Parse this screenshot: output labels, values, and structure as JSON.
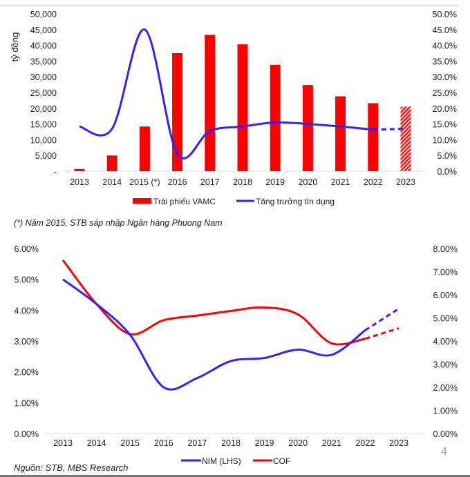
{
  "page_number": "4",
  "footnote": "(*) Năm 2015, STB sáp nhập Ngân hàng Phuong Nam",
  "source": "Nguồn: STB, MBS Research",
  "colors": {
    "red": "#ff0000",
    "blue": "#3a1ef5",
    "axis": "#d9d9d9"
  },
  "chart_data": [
    {
      "type": "bar+line",
      "ylabel": "tỷ đồng",
      "categories": [
        "2013",
        "2014",
        "2015 (*)",
        "2016",
        "2017",
        "2018",
        "2019",
        "2020",
        "2021",
        "2022",
        "2023"
      ],
      "y_ticks": [
        "-",
        "5,000",
        "10,000",
        "15,000",
        "20,000",
        "25,000",
        "30,000",
        "35,000",
        "40,000",
        "45,000",
        "50,000"
      ],
      "y2_ticks": [
        "0.0%",
        "5.0%",
        "10.0%",
        "15.0%",
        "20.0%",
        "25.0%",
        "30.0%",
        "35.0%",
        "40.0%",
        "45.0%",
        "50.0%"
      ],
      "ylim": [
        0,
        50000
      ],
      "y2lim": [
        0,
        50
      ],
      "series": [
        {
          "name": "Trái phiếu VAMC",
          "type": "bar",
          "axis": "left",
          "values": [
            700,
            5000,
            14200,
            37500,
            43300,
            40300,
            33800,
            27400,
            23800,
            21600,
            20500
          ],
          "forecast_from_index": 10
        },
        {
          "name": "Tăng trưởng tín dụng",
          "type": "line",
          "axis": "right",
          "values": [
            14.2,
            13.5,
            45.0,
            5.5,
            12.8,
            14.2,
            15.5,
            15.0,
            14.2,
            13.2,
            13.5
          ],
          "forecast_from_index": 9
        }
      ],
      "legend": "bottom"
    },
    {
      "type": "line",
      "categories": [
        "2013",
        "2014",
        "2015",
        "2016",
        "2017",
        "2018",
        "2019",
        "2020",
        "2021",
        "2022",
        "2023"
      ],
      "y_ticks": [
        "0.00%",
        "1.00%",
        "2.00%",
        "3.00%",
        "4.00%",
        "5.00%",
        "6.00%"
      ],
      "y2_ticks": [
        "0.00%",
        "1.00%",
        "2.00%",
        "3.00%",
        "4.00%",
        "5.00%",
        "6.00%",
        "7.00%",
        "8.00%"
      ],
      "ylim": [
        0,
        6
      ],
      "y2lim": [
        0,
        8
      ],
      "series": [
        {
          "name": "NIM (LHS)",
          "axis": "left",
          "values": [
            5.0,
            4.2,
            3.2,
            1.5,
            1.8,
            2.35,
            2.45,
            2.72,
            2.55,
            3.35,
            4.05
          ],
          "forecast_from_index": 9
        },
        {
          "name": "COF",
          "axis": "right",
          "values": [
            7.5,
            5.6,
            4.3,
            4.9,
            5.1,
            5.3,
            5.45,
            5.15,
            3.9,
            4.1,
            4.55
          ],
          "forecast_from_index": 9
        }
      ],
      "legend": "bottom"
    }
  ]
}
